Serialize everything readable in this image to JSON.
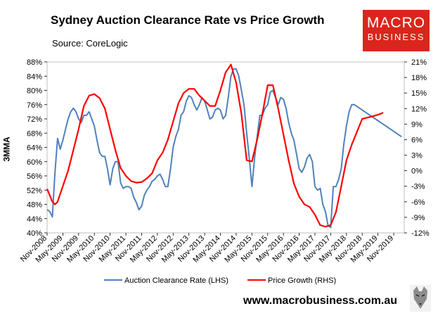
{
  "title": "Sydney Auction Clearance Rate vs Price Growth",
  "source": "Source: CoreLogic",
  "logo": {
    "line1": "MACRO",
    "line2": "BUSINESS"
  },
  "footer": "www.macrobusiness.com.au",
  "colors": {
    "auction": "#4f81bd",
    "price": "#ff0000",
    "brand": "#d9261c"
  },
  "chart_data": {
    "type": "line",
    "ylabel": "3MMA",
    "x_start": "Nov-2008",
    "x_end": "Feb-2020",
    "xticks": [
      "Nov-2008",
      "May-2009",
      "Nov-2009",
      "May-2010",
      "Nov-2010",
      "May-2011",
      "Nov-2011",
      "May-2012",
      "Nov-2012",
      "May-2013",
      "Nov-2013",
      "May-2014",
      "Nov-2014",
      "May-2015",
      "Nov-2015",
      "May-2016",
      "Nov-2016",
      "May-2017",
      "Nov-2017",
      "May-2018",
      "Nov-2018",
      "May-2019",
      "Nov-2019"
    ],
    "y_left": {
      "min": 40,
      "max": 88,
      "step": 4,
      "ticks": [
        "40%",
        "44%",
        "48%",
        "52%",
        "56%",
        "60%",
        "64%",
        "68%",
        "72%",
        "76%",
        "80%",
        "84%",
        "88%"
      ]
    },
    "y_right": {
      "min": -12,
      "max": 21,
      "step": 3,
      "ticks": [
        "-12%",
        "-9%",
        "-6%",
        "-3%",
        "0%",
        "3%",
        "6%",
        "9%",
        "12%",
        "15%",
        "18%",
        "21%"
      ]
    },
    "series": [
      {
        "name": "Auction Clearance Rate (LHS)",
        "axis": "left",
        "x": [
          0,
          1,
          2,
          3,
          4,
          5,
          6,
          7,
          8,
          9,
          10,
          11,
          12,
          13,
          14,
          15,
          16,
          17,
          18,
          19,
          20,
          21,
          22,
          23,
          24,
          25,
          26,
          27,
          28,
          29,
          30,
          31,
          32,
          33,
          34,
          35,
          36,
          37,
          38,
          39,
          40,
          41,
          42,
          43,
          44,
          45,
          46,
          47,
          48,
          49,
          50,
          51,
          52,
          53,
          54,
          55,
          56,
          57,
          58,
          59,
          60,
          61,
          62,
          63,
          64,
          65,
          66,
          67,
          68,
          69,
          70,
          71,
          72,
          73,
          74,
          75,
          76,
          77,
          78,
          79,
          80,
          81,
          82,
          83,
          84,
          85,
          86,
          87,
          88,
          89,
          90,
          91,
          92,
          93,
          94,
          95,
          96,
          97,
          98,
          99,
          100,
          101,
          102,
          103,
          104,
          105,
          106,
          107,
          108,
          109,
          110,
          111,
          112,
          113,
          114,
          115,
          116,
          117,
          118,
          119,
          120,
          121,
          122,
          123,
          124,
          125,
          126,
          127,
          128,
          129,
          130,
          131,
          132,
          133,
          134,
          135
        ],
        "values": [
          46.5,
          46,
          44.5,
          57,
          66.5,
          63.5,
          66,
          69,
          72,
          74,
          75,
          74,
          72,
          71,
          73,
          73,
          74,
          72,
          70,
          66,
          62.5,
          61.5,
          61.5,
          58,
          53.5,
          58,
          60,
          60,
          54,
          52.5,
          53,
          53,
          52.5,
          50,
          48.5,
          46.5,
          47.5,
          50.5,
          52,
          53,
          54.5,
          55,
          56,
          56.5,
          55,
          53,
          53,
          58,
          64,
          67,
          69,
          73,
          74,
          77,
          78.5,
          78,
          76,
          74.5,
          76,
          78,
          77,
          74.5,
          72,
          72.5,
          74.5,
          75,
          74.5,
          72,
          73,
          78,
          84,
          86,
          86,
          84,
          80,
          76,
          68,
          61,
          53,
          61,
          67,
          73,
          73,
          75,
          76,
          79.5,
          80,
          78,
          76,
          78,
          77.5,
          75,
          71,
          68,
          66,
          62,
          58,
          57,
          58.5,
          61,
          62,
          60,
          53,
          52,
          52.5,
          48,
          46,
          42,
          41.5,
          53,
          53,
          55,
          58,
          65,
          70,
          74,
          76,
          76,
          75.5,
          75,
          74.5,
          74,
          73.5,
          73,
          72.5,
          72,
          71.5,
          71,
          70.5,
          70,
          69.5,
          69,
          68.5,
          68,
          67.5,
          67
        ],
        "n_plot": 135
      },
      {
        "name": "Price Growth (RHS)",
        "axis": "right",
        "x": [
          0,
          2,
          3,
          4,
          6,
          8,
          10,
          12,
          14,
          16,
          18,
          20,
          22,
          24,
          26,
          28,
          30,
          32,
          34,
          36,
          38,
          40,
          42,
          44,
          46,
          48,
          50,
          52,
          54,
          56,
          58,
          60,
          62,
          64,
          66,
          68,
          70,
          72,
          74,
          76,
          78,
          80,
          82,
          84,
          86,
          88,
          90,
          92,
          94,
          96,
          98,
          100,
          102,
          104,
          106,
          108,
          110,
          112,
          114,
          116,
          120,
          124,
          126,
          128
        ],
        "values": [
          -3.5,
          -6,
          -6.5,
          -6,
          -3,
          0,
          4,
          8,
          12.5,
          14.5,
          14.8,
          14,
          12,
          8,
          4,
          0.5,
          -1,
          -2,
          -2.3,
          -2.2,
          -1.5,
          -0.5,
          2,
          3.5,
          6,
          9.5,
          13,
          15,
          15.8,
          15.8,
          14.5,
          13.5,
          12.5,
          12.5,
          15.5,
          19,
          20.5,
          17,
          11,
          2,
          1.8,
          6,
          11,
          16.5,
          16.5,
          12,
          7,
          2,
          -2.5,
          -5,
          -6.5,
          -7,
          -8.5,
          -10.5,
          -10.8,
          -10.5,
          -8,
          -3,
          2,
          5,
          10,
          10.5,
          10.8,
          11.2
        ]
      }
    ]
  }
}
